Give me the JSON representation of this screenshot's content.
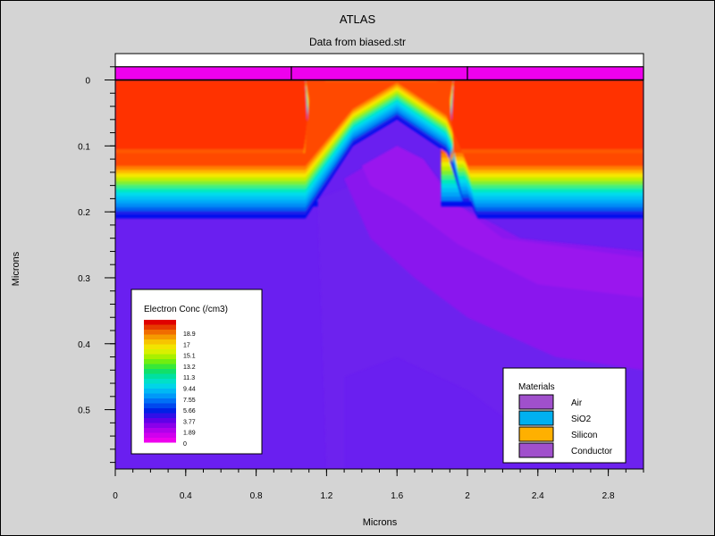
{
  "chart_data": {
    "type": "heatmap",
    "title": "ATLAS",
    "subtitle": "Data from biased.str",
    "xlabel": "Microns",
    "ylabel": "Microns",
    "xlim": [
      0,
      3.0
    ],
    "ylim": [
      0.59,
      -0.04
    ],
    "x_ticks": [
      0,
      0.4,
      0.8,
      1.2,
      1.6,
      2,
      2.4,
      2.8
    ],
    "x_tick_labels": [
      "0",
      "0.4",
      "0.8",
      "1.2",
      "1.6",
      "2",
      "2.4",
      "2.8"
    ],
    "y_ticks": [
      0,
      0.1,
      0.2,
      0.3,
      0.4,
      0.5
    ],
    "y_tick_labels": [
      "0",
      "0.1",
      "0.2",
      "0.3",
      "0.4",
      "0.5"
    ],
    "minor_tick_step": 0.02,
    "electrodes": [
      {
        "x_start": 0.0,
        "x_end": 1.0,
        "color": "#ee00ee"
      },
      {
        "x_start": 1.0,
        "x_end": 2.0,
        "color": "#ee00ee"
      },
      {
        "x_start": 2.0,
        "x_end": 3.0,
        "color": "#ee00ee"
      }
    ],
    "electrode_layer_y": [
      -0.02,
      0.0
    ],
    "air_color": "#ffffff",
    "contour_legend": {
      "title": "Electron Conc (/cm3)",
      "labels": [
        "18.9",
        "17",
        "15.1",
        "13.2",
        "11.3",
        "9.44",
        "7.55",
        "5.66",
        "3.77",
        "1.89",
        "0"
      ],
      "colors": [
        "#e00000",
        "#e63a00",
        "#f06c00",
        "#f59a00",
        "#f7c400",
        "#f2e400",
        "#d8f000",
        "#a8f000",
        "#70ee10",
        "#38e838",
        "#10e06a",
        "#00e0a0",
        "#00e0c8",
        "#00d4e8",
        "#00b8f4",
        "#0098f8",
        "#0070f6",
        "#0048ee",
        "#0020e6",
        "#3010e8",
        "#6000e8",
        "#8a00ea",
        "#b000ec",
        "#d000ee",
        "#ee00ee"
      ]
    },
    "materials_legend": {
      "title": "Materials",
      "items": [
        {
          "label": "Air",
          "color": "#a050cc"
        },
        {
          "label": "SiO2",
          "color": "#00b0f0"
        },
        {
          "label": "Silicon",
          "color": "#ffb000"
        },
        {
          "label": "Conductor",
          "color": "#a050cc"
        }
      ]
    },
    "regions": {
      "background_color": "#6a1ff0",
      "upper_highlight_color": "#6d20ee",
      "channel_glow_color": "#8a18ee",
      "channel_core_color": "#9a14ee",
      "side_high_color": "#ff3300",
      "side_band_colors": [
        "#ff5a00",
        "#ff8a00",
        "#ffc000",
        "#e8f000",
        "#b8f000",
        "#7cf030",
        "#40f080",
        "#00e8b8",
        "#00d8e8",
        "#00c0f4",
        "#00a4f8",
        "#0080f6",
        "#0010ee"
      ],
      "gate_band_colors": [
        "#ff4a00",
        "#ff8000",
        "#ffb800",
        "#f6e800",
        "#c0f000",
        "#80f030",
        "#40f080",
        "#00eabc",
        "#00dcec",
        "#00c4f4",
        "#00a8f8",
        "#008cf6",
        "#0060f0",
        "#1a1ae8",
        "#0010ee"
      ]
    }
  }
}
